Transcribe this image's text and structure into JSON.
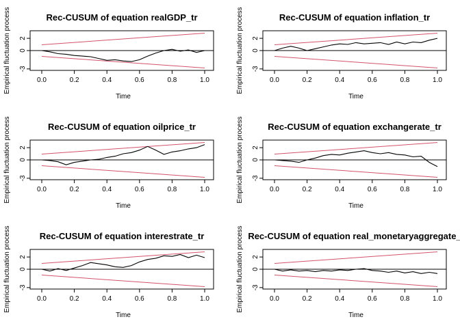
{
  "chart_data": [
    {
      "type": "line",
      "title": "Rec-CUSUM of equation realGDP_tr",
      "xlabel": "Time",
      "ylabel": "Empirical fluctuation process",
      "xlim": [
        0,
        1
      ],
      "ylim": [
        -3,
        3
      ],
      "xticks": [
        "0.0",
        "0.2",
        "0.4",
        "0.6",
        "0.8",
        "1.0"
      ],
      "yticks": [
        "-3",
        "0",
        "2"
      ],
      "boundary": {
        "start": 0.948,
        "end": 2.844
      },
      "x": [
        0.0,
        0.05,
        0.1,
        0.15,
        0.2,
        0.25,
        0.3,
        0.35,
        0.4,
        0.45,
        0.5,
        0.55,
        0.6,
        0.65,
        0.7,
        0.75,
        0.8,
        0.85,
        0.9,
        0.95,
        1.0
      ],
      "values": [
        0.0,
        -0.2,
        -0.5,
        -0.6,
        -0.8,
        -0.9,
        -1.0,
        -1.3,
        -1.6,
        -1.5,
        -1.7,
        -1.8,
        -1.5,
        -0.9,
        -0.4,
        0.0,
        0.2,
        -0.1,
        0.1,
        -0.3,
        0.0
      ]
    },
    {
      "type": "line",
      "title": "Rec-CUSUM of equation inflation_tr",
      "xlabel": "Time",
      "ylabel": "Empirical fluctuation process",
      "xlim": [
        0,
        1
      ],
      "ylim": [
        -3,
        3
      ],
      "xticks": [
        "0.0",
        "0.2",
        "0.4",
        "0.6",
        "0.8",
        "1.0"
      ],
      "yticks": [
        "-3",
        "0",
        "2"
      ],
      "boundary": {
        "start": 0.948,
        "end": 2.844
      },
      "x": [
        0.0,
        0.05,
        0.1,
        0.15,
        0.2,
        0.25,
        0.3,
        0.35,
        0.4,
        0.45,
        0.5,
        0.55,
        0.6,
        0.65,
        0.7,
        0.75,
        0.8,
        0.85,
        0.9,
        0.95,
        1.0
      ],
      "values": [
        0.0,
        0.4,
        0.7,
        0.4,
        0.0,
        0.3,
        0.6,
        0.9,
        1.1,
        1.0,
        1.3,
        1.1,
        1.2,
        1.3,
        1.0,
        1.4,
        1.1,
        1.4,
        1.3,
        1.7,
        2.0
      ]
    },
    {
      "type": "line",
      "title": "Rec-CUSUM of equation oilprice_tr",
      "xlabel": "Time",
      "ylabel": "Empirical fluctuation process",
      "xlim": [
        0,
        1
      ],
      "ylim": [
        -3,
        3
      ],
      "xticks": [
        "0.0",
        "0.2",
        "0.4",
        "0.6",
        "0.8",
        "1.0"
      ],
      "yticks": [
        "-3",
        "0",
        "2"
      ],
      "boundary": {
        "start": 0.948,
        "end": 2.844
      },
      "x": [
        0.0,
        0.05,
        0.1,
        0.15,
        0.2,
        0.25,
        0.3,
        0.35,
        0.4,
        0.45,
        0.5,
        0.55,
        0.6,
        0.65,
        0.7,
        0.75,
        0.8,
        0.85,
        0.9,
        0.95,
        1.0
      ],
      "values": [
        0.0,
        -0.1,
        -0.3,
        -0.8,
        -0.4,
        -0.2,
        0.0,
        0.1,
        0.4,
        0.6,
        1.0,
        1.2,
        1.6,
        2.2,
        1.6,
        0.9,
        1.3,
        1.5,
        1.8,
        2.0,
        2.5
      ]
    },
    {
      "type": "line",
      "title": "Rec-CUSUM of equation exchangerate_tr",
      "xlabel": "Time",
      "ylabel": "Empirical fluctuation process",
      "xlim": [
        0,
        1
      ],
      "ylim": [
        -3,
        3
      ],
      "xticks": [
        "0.0",
        "0.2",
        "0.4",
        "0.6",
        "0.8",
        "1.0"
      ],
      "yticks": [
        "-3",
        "0",
        "2"
      ],
      "boundary": {
        "start": 0.948,
        "end": 2.844
      },
      "x": [
        0.0,
        0.05,
        0.1,
        0.15,
        0.2,
        0.25,
        0.3,
        0.35,
        0.4,
        0.45,
        0.5,
        0.55,
        0.6,
        0.65,
        0.7,
        0.75,
        0.8,
        0.85,
        0.9,
        0.95,
        1.0
      ],
      "values": [
        0.0,
        -0.1,
        -0.2,
        -0.4,
        0.0,
        0.3,
        0.7,
        0.9,
        0.8,
        1.1,
        1.3,
        1.5,
        1.2,
        1.0,
        1.2,
        0.9,
        0.8,
        0.5,
        0.6,
        -0.4,
        -1.1
      ]
    },
    {
      "type": "line",
      "title": "Rec-CUSUM of equation interestrate_tr",
      "xlabel": "Time",
      "ylabel": "Empirical fluctuation process",
      "xlim": [
        0,
        1
      ],
      "ylim": [
        -3,
        3
      ],
      "xticks": [
        "0.0",
        "0.2",
        "0.4",
        "0.6",
        "0.8",
        "1.0"
      ],
      "yticks": [
        "-3",
        "0",
        "2"
      ],
      "boundary": {
        "start": 0.948,
        "end": 2.844
      },
      "x": [
        0.0,
        0.05,
        0.1,
        0.15,
        0.2,
        0.25,
        0.3,
        0.35,
        0.4,
        0.45,
        0.5,
        0.55,
        0.6,
        0.65,
        0.7,
        0.75,
        0.8,
        0.85,
        0.9,
        0.95,
        1.0
      ],
      "values": [
        0.0,
        -0.3,
        0.1,
        -0.2,
        0.2,
        0.6,
        1.1,
        0.9,
        0.7,
        0.4,
        0.3,
        0.6,
        1.2,
        1.6,
        1.8,
        2.2,
        2.1,
        2.4,
        1.9,
        2.3,
        1.9
      ]
    },
    {
      "type": "line",
      "title": "Rec-CUSUM of equation real_monetaryaggregate_",
      "xlabel": "Time",
      "ylabel": "Empirical fluctuation process",
      "xlim": [
        0,
        1
      ],
      "ylim": [
        -3,
        3
      ],
      "xticks": [
        "0.0",
        "0.2",
        "0.4",
        "0.6",
        "0.8",
        "1.0"
      ],
      "yticks": [
        "-3",
        "0",
        "2"
      ],
      "boundary": {
        "start": 0.948,
        "end": 2.844
      },
      "x": [
        0.0,
        0.05,
        0.1,
        0.15,
        0.2,
        0.25,
        0.3,
        0.35,
        0.4,
        0.45,
        0.5,
        0.55,
        0.6,
        0.65,
        0.7,
        0.75,
        0.8,
        0.85,
        0.9,
        0.95,
        1.0
      ],
      "values": [
        0.0,
        -0.3,
        -0.1,
        -0.3,
        -0.2,
        -0.4,
        -0.2,
        -0.3,
        -0.1,
        -0.2,
        0.0,
        0.1,
        -0.2,
        -0.3,
        -0.5,
        -0.3,
        -0.6,
        -0.4,
        -0.7,
        -0.5,
        -0.7
      ]
    }
  ]
}
